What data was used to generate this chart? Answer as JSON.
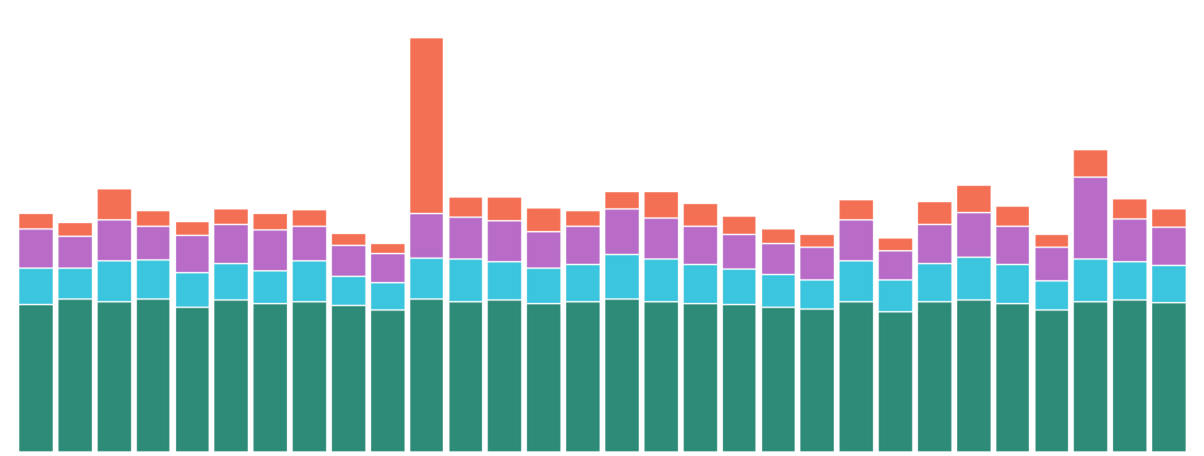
{
  "colors": {
    "teal": "#2d8b78",
    "cyan": "#3cc5de",
    "purple": "#b86cc8",
    "orange": "#f47055"
  },
  "background": "#ffffff",
  "grid_color": "#c8c8c8",
  "bar_edge_color": "#ffffff",
  "n_bars": 30,
  "teal": [
    260,
    270,
    265,
    270,
    255,
    268,
    262,
    265,
    258,
    250,
    270,
    265,
    268,
    262,
    265,
    270,
    265,
    262,
    260,
    255,
    252,
    265,
    248,
    265,
    268,
    262,
    250,
    265,
    268,
    264
  ],
  "cyan": [
    65,
    55,
    72,
    68,
    62,
    65,
    58,
    72,
    52,
    48,
    72,
    75,
    68,
    62,
    65,
    78,
    75,
    68,
    62,
    58,
    52,
    72,
    55,
    68,
    75,
    68,
    52,
    75,
    68,
    65
  ],
  "purple": [
    68,
    55,
    72,
    60,
    65,
    68,
    72,
    62,
    55,
    52,
    78,
    75,
    72,
    65,
    68,
    80,
    72,
    68,
    62,
    55,
    58,
    72,
    52,
    68,
    80,
    68,
    60,
    145,
    75,
    68
  ],
  "orange": [
    28,
    25,
    55,
    28,
    25,
    28,
    28,
    28,
    20,
    18,
    310,
    35,
    42,
    42,
    28,
    32,
    48,
    40,
    32,
    25,
    22,
    35,
    22,
    40,
    48,
    35,
    22,
    48,
    35,
    32
  ]
}
